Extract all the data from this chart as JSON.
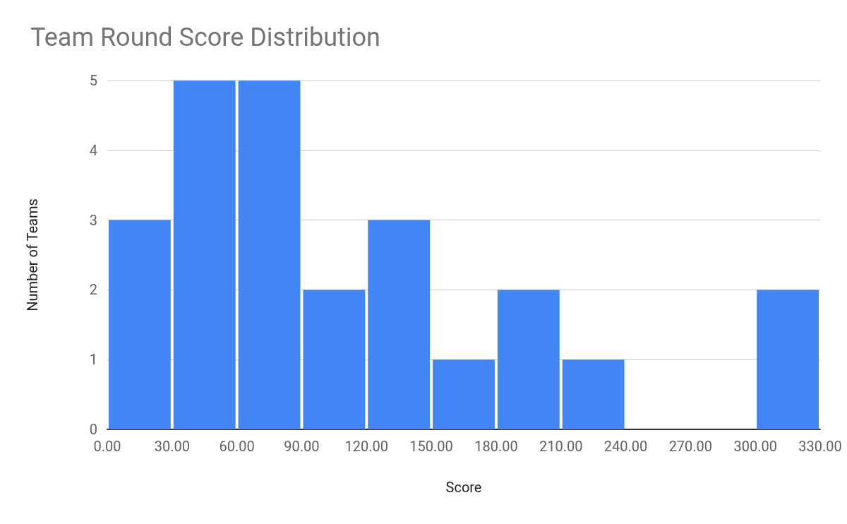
{
  "chart_data": {
    "type": "histogram",
    "title": "Team Round Score Distribution",
    "xlabel": "Score",
    "ylabel": "Number of Teams",
    "bins": [
      0,
      30,
      60,
      90,
      120,
      150,
      180,
      210,
      240,
      270,
      300,
      330
    ],
    "values": [
      3,
      5,
      5,
      2,
      3,
      1,
      2,
      1,
      0,
      0,
      2
    ],
    "color": "#4285f4",
    "xlim": [
      0,
      330
    ],
    "xticks": [
      {
        "value": 0,
        "label": "0.00"
      },
      {
        "value": 30,
        "label": "30.00"
      },
      {
        "value": 60,
        "label": "60.00"
      },
      {
        "value": 90,
        "label": "90.00"
      },
      {
        "value": 120,
        "label": "120.00"
      },
      {
        "value": 150,
        "label": "150.00"
      },
      {
        "value": 180,
        "label": "180.00"
      },
      {
        "value": 210,
        "label": "210.00"
      },
      {
        "value": 240,
        "label": "240.00"
      },
      {
        "value": 270,
        "label": "270.00"
      },
      {
        "value": 300,
        "label": "300.00"
      },
      {
        "value": 330,
        "label": "330.00"
      }
    ],
    "ylim": [
      0,
      5
    ],
    "yticks": [
      0,
      1,
      2,
      3,
      4,
      5
    ],
    "grid": "y"
  }
}
